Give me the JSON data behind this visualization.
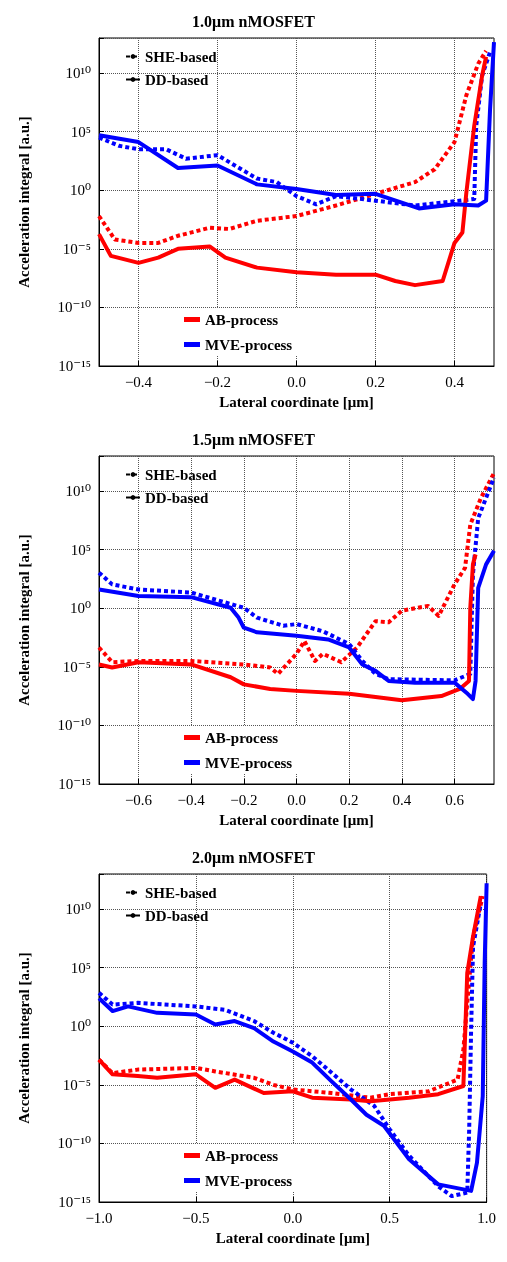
{
  "chart_data": [
    {
      "type": "line",
      "title": "1.0μm nMOSFET",
      "xlabel": "Lateral coordinate [μm]",
      "ylabel": "Acceleration integral [a.u.]",
      "log": "y",
      "grid": true,
      "legend": "bottom",
      "annotations": [
        "SHE-based",
        "DD-based"
      ],
      "xlim": [
        -0.5,
        0.5
      ],
      "xticks": [
        {
          "value": -0.4,
          "label": "−0.4"
        },
        {
          "value": -0.2,
          "label": "−0.2"
        },
        {
          "value": 0,
          "label": "0.0"
        },
        {
          "value": 0.2,
          "label": "0.2"
        },
        {
          "value": 0.4,
          "label": "0.4"
        }
      ],
      "ylim": [
        1e-15,
        10000000000000.0
      ],
      "yticks": [
        {
          "value": 1e-15,
          "label": "10⁻¹⁵"
        },
        {
          "value": 1e-10,
          "label": "10⁻¹⁰"
        },
        {
          "value": 1e-05,
          "label": "10⁻⁵"
        },
        {
          "value": 1,
          "label": "10⁰"
        },
        {
          "value": 100000.0,
          "label": "10⁵"
        },
        {
          "value": 10000000000.0,
          "label": "10¹⁰"
        }
      ],
      "series": [
        {
          "color": "#ff0000",
          "line_style": "dotted",
          "x": [
            -0.5,
            -0.46,
            -0.4,
            -0.35,
            -0.3,
            -0.22,
            -0.17,
            -0.1,
            0,
            0.1,
            0.2,
            0.3,
            0.35,
            0.4,
            0.43,
            0.46,
            0.48
          ],
          "values": [
            0.0063,
            6.3e-05,
            3.2e-05,
            3.2e-05,
            0.00013,
            0.00063,
            0.0005,
            0.0025,
            0.0063,
            0.05,
            0.5,
            5,
            63,
            13000.0,
            130000000.0,
            63000000000.0,
            800000000000.0
          ]
        },
        {
          "color": "#0000ff",
          "line_style": "dotted",
          "x": [
            -0.5,
            -0.45,
            -0.4,
            -0.33,
            -0.28,
            -0.2,
            -0.1,
            -0.05,
            0,
            0.05,
            0.1,
            0.2,
            0.3,
            0.45,
            0.455,
            0.47,
            0.49
          ],
          "values": [
            32000.0,
            6300,
            3200,
            3200,
            500,
            1000,
            10,
            5,
            0.32,
            0.063,
            0.32,
            0.13,
            0.05,
            0.18,
            320000.0,
            6300000000.0,
            630000000000.0
          ]
        },
        {
          "name": "AB-process",
          "color": "#ff0000",
          "line_style": "solid",
          "x": [
            -0.5,
            -0.47,
            -0.4,
            -0.35,
            -0.3,
            -0.22,
            -0.18,
            -0.1,
            0,
            0.1,
            0.2,
            0.25,
            0.3,
            0.37,
            0.4,
            0.42,
            0.43,
            0.45,
            0.47,
            0.48
          ],
          "values": [
            0.00018,
            2.5e-06,
            6.3e-07,
            1.8e-06,
            1e-05,
            1.6e-05,
            1.8e-06,
            2.5e-07,
            1e-07,
            6.3e-08,
            6.3e-08,
            1.8e-08,
            8e-09,
            1.8e-08,
            3.2e-05,
            0.00025,
            0.63,
            320000.0,
            6300000000.0,
            250000000000.0
          ]
        },
        {
          "name": "MVE-process",
          "color": "#0000ff",
          "line_style": "solid",
          "x": [
            -0.5,
            -0.4,
            -0.3,
            -0.2,
            -0.1,
            0,
            0.1,
            0.2,
            0.31,
            0.4,
            0.46,
            0.48,
            0.49,
            0.5
          ],
          "values": [
            50000.0,
            13000.0,
            80,
            130,
            3.2,
            1.3,
            0.4,
            0.5,
            0.028,
            0.063,
            0.05,
            0.13,
            8000000.0,
            4500000000000.0
          ]
        }
      ]
    },
    {
      "type": "line",
      "title": "1.5μm nMOSFET",
      "xlabel": "Lateral coordinate [μm]",
      "ylabel": "Acceleration integral [a.u.]",
      "log": "y",
      "grid": true,
      "legend": "bottom",
      "annotations": [
        "SHE-based",
        "DD-based"
      ],
      "xlim": [
        -0.75,
        0.75
      ],
      "xticks": [
        {
          "value": -0.6,
          "label": "−0.6"
        },
        {
          "value": -0.4,
          "label": "−0.4"
        },
        {
          "value": -0.2,
          "label": "−0.2"
        },
        {
          "value": 0,
          "label": "0.0"
        },
        {
          "value": 0.2,
          "label": "0.2"
        },
        {
          "value": 0.4,
          "label": "0.4"
        },
        {
          "value": 0.6,
          "label": "0.6"
        }
      ],
      "ylim": [
        1e-15,
        10000000000000.0
      ],
      "yticks": [
        {
          "value": 1e-15,
          "label": "10⁻¹⁵"
        },
        {
          "value": 1e-10,
          "label": "10⁻¹⁰"
        },
        {
          "value": 1e-05,
          "label": "10⁻⁵"
        },
        {
          "value": 1,
          "label": "10⁰"
        },
        {
          "value": 100000.0,
          "label": "10⁵"
        },
        {
          "value": 10000000000.0,
          "label": "10¹⁰"
        }
      ],
      "series": [
        {
          "color": "#ff0000",
          "line_style": "dotted",
          "x": [
            -0.75,
            -0.7,
            -0.6,
            -0.4,
            -0.2,
            -0.1,
            -0.07,
            0,
            0.03,
            0.07,
            0.1,
            0.17,
            0.23,
            0.3,
            0.35,
            0.4,
            0.5,
            0.54,
            0.6,
            0.64,
            0.66,
            0.7,
            0.75
          ],
          "values": [
            0.00045,
            2.5e-05,
            3.2e-05,
            3.2e-05,
            1.6e-05,
            8.9e-06,
            2.5e-06,
            0.00013,
            0.0016,
            3.2e-05,
            0.00013,
            2.5e-05,
            0.00045,
            0.08,
            0.063,
            0.63,
            1.6,
            0.22,
            110,
            2800,
            14000000.0,
            2500000000.0,
            350000000000.0
          ]
        },
        {
          "color": "#0000ff",
          "line_style": "dotted",
          "x": [
            -0.75,
            -0.7,
            -0.6,
            -0.4,
            -0.2,
            -0.15,
            -0.05,
            0,
            0.1,
            0.2,
            0.25,
            0.3,
            0.35,
            0.6,
            0.66,
            0.67,
            0.69,
            0.75
          ],
          "values": [
            1100,
            110,
            40,
            22,
            1.1,
            0.16,
            0.032,
            0.045,
            0.011,
            0.00089,
            3.2e-05,
            2.5e-06,
            8.9e-07,
            7.1e-07,
            2.5e-06,
            800,
            50000000.0,
            140000000000.0
          ]
        },
        {
          "name": "AB-process",
          "color": "#ff0000",
          "line_style": "solid",
          "x": [
            -0.75,
            -0.7,
            -0.6,
            -0.4,
            -0.25,
            -0.2,
            -0.1,
            0,
            0.2,
            0.4,
            0.55,
            0.62,
            0.655,
            0.66,
            0.67,
            0.68
          ],
          "values": [
            1.6e-05,
            8.9e-06,
            2.5e-05,
            1.6e-05,
            1.3e-06,
            3.2e-07,
            1.3e-07,
            8.9e-08,
            5e-08,
            1.4e-08,
            3.2e-08,
            1.3e-07,
            6.3e-07,
            1.1,
            5600,
            40000.0
          ]
        },
        {
          "name": "MVE-process",
          "color": "#0000ff",
          "line_style": "solid",
          "x": [
            -0.75,
            -0.6,
            -0.4,
            -0.25,
            -0.22,
            -0.2,
            -0.15,
            0,
            0.12,
            0.2,
            0.25,
            0.3,
            0.35,
            0.45,
            0.6,
            0.65,
            0.67,
            0.68,
            0.69,
            0.72,
            0.75
          ],
          "values": [
            40,
            11,
            8.9,
            1.1,
            0.16,
            0.022,
            0.0089,
            0.0045,
            0.0022,
            0.00045,
            1.6e-05,
            4.5e-06,
            6.3e-07,
            4.5e-07,
            4.5e-07,
            5e-08,
            1.8e-08,
            6.3e-07,
            56,
            5600,
            80000.0
          ]
        }
      ]
    },
    {
      "type": "line",
      "title": "2.0μm nMOSFET",
      "xlabel": "Lateral coordinate [μm]",
      "ylabel": "Acceleration integral [a.u.]",
      "log": "y",
      "grid": true,
      "legend": "bottom",
      "annotations": [
        "SHE-based",
        "DD-based"
      ],
      "xlim": [
        -1,
        1
      ],
      "xticks": [
        {
          "value": -1,
          "label": "−1.0"
        },
        {
          "value": -0.5,
          "label": "−0.5"
        },
        {
          "value": 0,
          "label": "0.0"
        },
        {
          "value": 0.5,
          "label": "0.5"
        },
        {
          "value": 1,
          "label": "1.0"
        }
      ],
      "ylim": [
        1e-15,
        10000000000000.0
      ],
      "yticks": [
        {
          "value": 1e-15,
          "label": "10⁻¹⁵"
        },
        {
          "value": 1e-10,
          "label": "10⁻¹⁰"
        },
        {
          "value": 1e-05,
          "label": "10⁻⁵"
        },
        {
          "value": 1,
          "label": "10⁰"
        },
        {
          "value": 100000.0,
          "label": "10⁵"
        },
        {
          "value": 10000000000.0,
          "label": "10¹⁰"
        }
      ],
      "series": [
        {
          "color": "#ff0000",
          "line_style": "dotted",
          "x": [
            -1,
            -0.93,
            -0.8,
            -0.5,
            -0.4,
            -0.2,
            -0.1,
            0,
            0.2,
            0.35,
            0.4,
            0.5,
            0.7,
            0.85,
            0.88,
            0.9,
            0.93,
            0.98
          ],
          "values": [
            0.0014,
            0.0001,
            0.0002,
            0.00028,
            0.00014,
            4e-05,
            1e-05,
            4e-06,
            2e-06,
            1e-06,
            8e-07,
            1.6e-06,
            2.8e-06,
            2.8e-05,
            0.01,
            100,
            45000000.0,
            130000000000.0
          ]
        },
        {
          "color": "#0000ff",
          "line_style": "dotted",
          "x": [
            -1,
            -0.93,
            -0.8,
            -0.5,
            -0.35,
            -0.2,
            -0.1,
            0,
            0.1,
            0.2,
            0.3,
            0.42,
            0.5,
            0.6,
            0.75,
            0.82,
            0.9,
            0.91,
            0.92,
            0.93,
            0.97
          ],
          "values": [
            710,
            71,
            100,
            50,
            25,
            2.8,
            0.28,
            0.04,
            0.0028,
            0.00011,
            4e-06,
            1.6e-07,
            1.6e-09,
            8.9e-12,
            2.2e-14,
            3.2e-15,
            6.3e-15,
            1.6e-09,
            0.5,
            6300000.0,
            32000000000.0
          ]
        },
        {
          "name": "AB-process",
          "color": "#ff0000",
          "line_style": "solid",
          "x": [
            -1,
            -0.93,
            -0.8,
            -0.7,
            -0.5,
            -0.4,
            -0.3,
            -0.15,
            0,
            0.1,
            0.3,
            0.4,
            0.6,
            0.75,
            0.88,
            0.9,
            0.93,
            0.97
          ],
          "values": [
            0.0014,
            8e-05,
            5.6e-05,
            4e-05,
            8e-05,
            5.6e-06,
            2.8e-05,
            2e-06,
            2.8e-06,
            8e-07,
            5.6e-07,
            4e-07,
            8e-07,
            1.6e-06,
            8e-06,
            35000.0,
            45000000.0,
            130000000000.0
          ]
        },
        {
          "name": "MVE-process",
          "color": "#0000ff",
          "line_style": "solid",
          "x": [
            -1,
            -0.93,
            -0.85,
            -0.7,
            -0.5,
            -0.4,
            -0.3,
            -0.2,
            -0.1,
            0,
            0.1,
            0.2,
            0.3,
            0.38,
            0.47,
            0.6,
            0.75,
            0.92,
            0.95,
            0.98,
            0.99,
            1
          ],
          "values": [
            250,
            20,
            50,
            14,
            10,
            1.4,
            2.8,
            0.71,
            0.05,
            0.0071,
            0.0008,
            2e-05,
            5.6e-07,
            2.8e-08,
            3.2e-09,
            4.5e-12,
            3.2e-14,
            8.9e-15,
            2.2e-12,
            1.1e-06,
            250000.0,
            1600000000000.0
          ]
        }
      ]
    }
  ]
}
